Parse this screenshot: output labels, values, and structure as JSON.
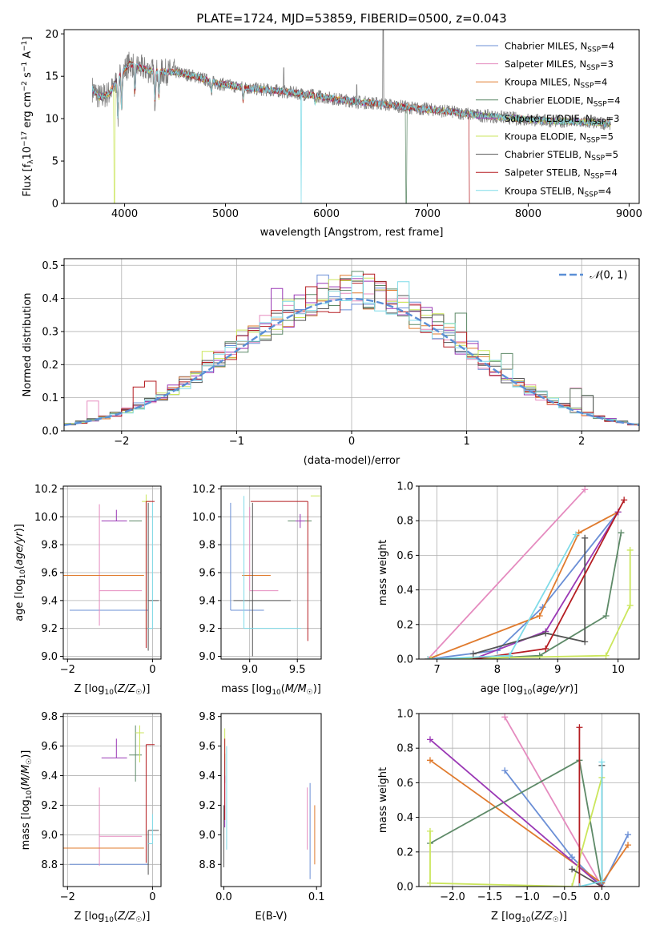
{
  "colors": {
    "Chabrier MILES": "#6b8fd6",
    "Salpeter MILES": "#e58bbf",
    "Kroupa MILES": "#e07b2e",
    "Chabrier ELODIE": "#5e8a68",
    "Salpeter ELODIE": "#9a38b5",
    "Kroupa ELODIE": "#cbe65c",
    "Chabrier STELIB": "#555555",
    "Salpeter STELIB": "#b51d22",
    "Kroupa STELIB": "#7fdbe8",
    "data": "#7f7f7f",
    "normal": "#5b8fd6"
  },
  "chart_data": [
    {
      "id": "spectrum",
      "type": "line",
      "title": "PLATE=1724, MJD=53859, FIBERID=0500, z=0.043",
      "xlabel": "wavelength [Angstrom, rest frame]",
      "ylabel": "Flux [f",
      "ylabel_html": [
        "Flux [f",
        "λ",
        "10",
        "−17",
        " erg cm",
        "−2",
        " s",
        "−1",
        " A",
        "−1",
        "]"
      ],
      "xlim": [
        3400,
        9100
      ],
      "ylim": [
        0,
        20.5
      ],
      "xticks": [
        4000,
        5000,
        6000,
        7000,
        8000,
        9000
      ],
      "yticks": [
        0,
        5,
        10,
        15,
        20
      ],
      "legend": [
        {
          "model": "Chabrier MILES",
          "nssp": "4"
        },
        {
          "model": "Salpeter MILES",
          "nssp": "3"
        },
        {
          "model": "Kroupa MILES",
          "nssp": "4"
        },
        {
          "model": "Chabrier ELODIE",
          "nssp": "4"
        },
        {
          "model": "Salpeter ELODIE",
          "nssp": "3"
        },
        {
          "model": "Kroupa ELODIE",
          "nssp": "5"
        },
        {
          "model": "Chabrier STELIB",
          "nssp": "5"
        },
        {
          "model": "Salpeter STELIB",
          "nssp": "4"
        },
        {
          "model": "Kroupa STELIB",
          "nssp": "4"
        }
      ],
      "legend_placement": "top-right",
      "continuum": [
        [
          3680,
          13.5
        ],
        [
          3750,
          12.5
        ],
        [
          3850,
          13.0
        ],
        [
          3950,
          15.0
        ],
        [
          4050,
          16.5
        ],
        [
          4150,
          16.0
        ],
        [
          4300,
          15.5
        ],
        [
          4500,
          15.5
        ],
        [
          4700,
          15.0
        ],
        [
          4900,
          14.2
        ],
        [
          5100,
          13.8
        ],
        [
          5300,
          13.5
        ],
        [
          5500,
          13.3
        ],
        [
          5700,
          13.0
        ],
        [
          5900,
          12.7
        ],
        [
          6100,
          12.3
        ],
        [
          6300,
          12.0
        ],
        [
          6500,
          11.8
        ],
        [
          6700,
          11.5
        ],
        [
          6900,
          11.2
        ],
        [
          7100,
          11.0
        ],
        [
          7300,
          10.7
        ],
        [
          7500,
          10.4
        ],
        [
          7700,
          10.2
        ],
        [
          7900,
          10.0
        ],
        [
          8100,
          9.8
        ],
        [
          8300,
          9.7
        ],
        [
          8500,
          9.6
        ],
        [
          8700,
          9.5
        ],
        [
          8820,
          9.4
        ]
      ],
      "absorption": [
        [
          3934,
          9.5
        ],
        [
          3969,
          11.0
        ],
        [
          4102,
          12.5
        ],
        [
          4300,
          11.8
        ],
        [
          4340,
          12.5
        ],
        [
          4861,
          13.0
        ],
        [
          5175,
          12.0
        ],
        [
          5890,
          11.8
        ]
      ],
      "emission": [
        [
          6563,
          20.5
        ],
        [
          5577,
          16.0
        ],
        [
          6300,
          14.0
        ]
      ],
      "dropouts": [
        {
          "model": "Kroupa ELODIE",
          "x": 3900
        },
        {
          "model": "Kroupa STELIB",
          "x": 5750
        },
        {
          "model": "Chabrier ELODIE",
          "x": 6790
        },
        {
          "model": "Salpeter STELIB",
          "x": 7420
        }
      ],
      "grid": false
    },
    {
      "id": "residuals",
      "type": "histogram",
      "xlabel": "(data-model)/error",
      "ylabel": "Normed distribution",
      "xlim": [
        -2.5,
        2.5
      ],
      "ylim": [
        0,
        0.52
      ],
      "xticks": [
        -2,
        -1,
        0,
        1,
        2
      ],
      "yticks": [
        0.0,
        0.1,
        0.2,
        0.3,
        0.4,
        0.5
      ],
      "legend": [
        "N(0,1)"
      ],
      "legend_placement": "top-right",
      "bin_width": 0.1,
      "grid": true
    },
    {
      "id": "age-vs-Z",
      "type": "errorbar",
      "xlabel": "Z [log10(Z/Z☉)]",
      "ylabel": "age [log10(age/yr)]",
      "xlim": [
        -2.1,
        0.2
      ],
      "ylim": [
        8.98,
        10.22
      ],
      "xticks": [
        -2,
        0
      ],
      "yticks": [
        9.0,
        9.2,
        9.4,
        9.6,
        9.8,
        10.0,
        10.2
      ],
      "points": [
        {
          "model": "Chabrier MILES",
          "x": -0.1,
          "xerr": [
            1.85,
            0.0
          ],
          "y": 9.33,
          "yerr": [
            0.0,
            0.0
          ]
        },
        {
          "model": "Salpeter MILES",
          "x": -1.25,
          "xerr": [
            0.0,
            1.0
          ],
          "y": 9.47,
          "yerr": [
            0.25,
            0.62
          ]
        },
        {
          "model": "Kroupa MILES",
          "x": -0.2,
          "xerr": [
            1.9,
            0.0
          ],
          "y": 9.58,
          "yerr": [
            0.0,
            0.0
          ]
        },
        {
          "model": "Chabrier ELODIE",
          "x": -0.4,
          "xerr": [
            0.15,
            0.15
          ],
          "y": 9.97,
          "yerr": [
            0.0,
            0.0
          ]
        },
        {
          "model": "Salpeter ELODIE",
          "x": -0.85,
          "xerr": [
            0.35,
            0.25
          ],
          "y": 9.97,
          "yerr": [
            0.0,
            0.08
          ]
        },
        {
          "model": "Kroupa ELODIE",
          "x": -0.15,
          "xerr": [
            0.1,
            0.1
          ],
          "y": 10.11,
          "yerr": [
            0.92,
            0.05
          ]
        },
        {
          "model": "Chabrier STELIB",
          "x": -0.1,
          "xerr": [
            0.0,
            0.25
          ],
          "y": 9.4,
          "yerr": [
            0.36,
            0.7
          ]
        },
        {
          "model": "Salpeter STELIB",
          "x": -0.15,
          "xerr": [
            0.0,
            0.2
          ],
          "y": 10.11,
          "yerr": [
            1.05,
            0.0
          ]
        },
        {
          "model": "Kroupa STELIB",
          "x": 0.0,
          "xerr": [
            0.1,
            0.0
          ],
          "y": 9.2,
          "yerr": [
            0.0,
            0.9
          ]
        }
      ],
      "grid": true
    },
    {
      "id": "age-vs-mass",
      "type": "errorbar",
      "xlabel": "mass [log10(M/M☉)]",
      "ylabel": "",
      "xlim": [
        8.7,
        9.75
      ],
      "ylim": [
        8.98,
        10.22
      ],
      "xticks": [
        9.0,
        9.5
      ],
      "yticks": [
        9.0,
        9.2,
        9.4,
        9.6,
        9.8,
        10.0,
        10.2
      ],
      "points": [
        {
          "model": "Chabrier MILES",
          "x": 8.8,
          "xerr": [
            0.0,
            0.35
          ],
          "y": 9.33,
          "yerr": [
            0.0,
            0.77
          ]
        },
        {
          "model": "Salpeter MILES",
          "x": 9.0,
          "xerr": [
            0.0,
            0.3
          ],
          "y": 9.47,
          "yerr": [
            0.0,
            0.6
          ]
        },
        {
          "model": "Kroupa MILES",
          "x": 8.92,
          "xerr": [
            0.0,
            0.3
          ],
          "y": 9.58,
          "yerr": [
            0.0,
            0.0
          ]
        },
        {
          "model": "Chabrier ELODIE",
          "x": 9.55,
          "xerr": [
            0.15,
            0.1
          ],
          "y": 9.97,
          "yerr": [
            0.0,
            0.0
          ]
        },
        {
          "model": "Salpeter ELODIE",
          "x": 9.53,
          "xerr": [
            0.05,
            0.05
          ],
          "y": 9.97,
          "yerr": [
            0.05,
            0.05
          ]
        },
        {
          "model": "Kroupa ELODIE",
          "x": 9.69,
          "xerr": [
            0.05,
            0.05
          ],
          "y": 10.15,
          "yerr": [
            0.0,
            0.0
          ]
        },
        {
          "model": "Chabrier STELIB",
          "x": 9.03,
          "xerr": [
            0.2,
            0.4
          ],
          "y": 9.4,
          "yerr": [
            0.4,
            0.7
          ]
        },
        {
          "model": "Salpeter STELIB",
          "x": 9.61,
          "xerr": [
            0.6,
            0.0
          ],
          "y": 10.11,
          "yerr": [
            1.0,
            0.0
          ]
        },
        {
          "model": "Kroupa STELIB",
          "x": 8.94,
          "xerr": [
            0.0,
            0.6
          ],
          "y": 9.2,
          "yerr": [
            0.0,
            0.95
          ]
        }
      ],
      "grid": true
    },
    {
      "id": "weight-vs-age",
      "type": "line",
      "xlabel": "age [log10(age/yr)]",
      "ylabel": "mass weight",
      "xlim": [
        6.7,
        10.35
      ],
      "ylim": [
        0,
        1.0
      ],
      "xticks": [
        7,
        8,
        9,
        10
      ],
      "yticks": [
        0.0,
        0.2,
        0.4,
        0.6,
        0.8,
        1.0
      ],
      "series": [
        {
          "model": "Chabrier MILES",
          "x": [
            6.85,
            8.0,
            8.75,
            10.0
          ],
          "y": [
            0.0,
            0.05,
            0.3,
            0.85
          ]
        },
        {
          "model": "Salpeter MILES",
          "x": [
            6.85,
            9.45
          ],
          "y": [
            0.0,
            0.98
          ]
        },
        {
          "model": "Kroupa MILES",
          "x": [
            6.85,
            8.7,
            9.35,
            10.0
          ],
          "y": [
            0.0,
            0.25,
            0.73,
            0.85
          ]
        },
        {
          "model": "Chabrier ELODIE",
          "x": [
            7.6,
            8.7,
            9.8,
            10.05
          ],
          "y": [
            0.0,
            0.02,
            0.25,
            0.73
          ]
        },
        {
          "model": "Salpeter ELODIE",
          "x": [
            7.6,
            8.8,
            10.0
          ],
          "y": [
            0.0,
            0.16,
            0.85
          ]
        },
        {
          "model": "Kroupa ELODIE",
          "x": [
            6.9,
            9.8,
            10.2,
            10.2
          ],
          "y": [
            0.0,
            0.02,
            0.31,
            0.63
          ]
        },
        {
          "model": "Chabrier STELIB",
          "x": [
            7.6,
            8.8,
            9.45,
            9.45
          ],
          "y": [
            0.03,
            0.15,
            0.1,
            0.7
          ]
        },
        {
          "model": "Salpeter STELIB",
          "x": [
            7.6,
            8.8,
            10.1
          ],
          "y": [
            0.0,
            0.06,
            0.92
          ]
        },
        {
          "model": "Kroupa STELIB",
          "x": [
            6.85,
            8.2,
            9.3
          ],
          "y": [
            0.0,
            0.02,
            0.72
          ]
        }
      ],
      "grid": true
    },
    {
      "id": "mass-vs-Z",
      "type": "errorbar",
      "xlabel": "Z [log10(Z/Z☉)]",
      "ylabel": "mass [log10(M/M☉)]",
      "xlim": [
        -2.1,
        0.2
      ],
      "ylim": [
        8.65,
        9.82
      ],
      "xticks": [
        -2,
        0
      ],
      "yticks": [
        8.8,
        9.0,
        9.2,
        9.4,
        9.6,
        9.8
      ],
      "points": [
        {
          "model": "Chabrier MILES",
          "x": -0.1,
          "xerr": [
            1.85,
            0.0
          ],
          "y": 8.8,
          "yerr": [
            0.0,
            0.0
          ]
        },
        {
          "model": "Salpeter MILES",
          "x": -1.25,
          "xerr": [
            0.0,
            1.0
          ],
          "y": 8.99,
          "yerr": [
            0.2,
            0.33
          ]
        },
        {
          "model": "Kroupa MILES",
          "x": -0.2,
          "xerr": [
            1.9,
            0.0
          ],
          "y": 8.91,
          "yerr": [
            0.0,
            0.0
          ]
        },
        {
          "model": "Chabrier ELODIE",
          "x": -0.4,
          "xerr": [
            0.15,
            0.15
          ],
          "y": 9.54,
          "yerr": [
            0.18,
            0.2
          ]
        },
        {
          "model": "Salpeter ELODIE",
          "x": -0.85,
          "xerr": [
            0.35,
            0.25
          ],
          "y": 9.52,
          "yerr": [
            0.0,
            0.13
          ]
        },
        {
          "model": "Kroupa ELODIE",
          "x": -0.3,
          "xerr": [
            0.1,
            0.1
          ],
          "y": 9.69,
          "yerr": [
            0.2,
            0.05
          ]
        },
        {
          "model": "Chabrier STELIB",
          "x": -0.1,
          "xerr": [
            0.0,
            0.25
          ],
          "y": 9.03,
          "yerr": [
            0.3,
            0.0
          ]
        },
        {
          "model": "Salpeter STELIB",
          "x": -0.15,
          "xerr": [
            0.0,
            0.2
          ],
          "y": 9.61,
          "yerr": [
            0.8,
            0.0
          ]
        },
        {
          "model": "Kroupa STELIB",
          "x": 0.0,
          "xerr": [
            0.1,
            0.0
          ],
          "y": 8.94,
          "yerr": [
            0.0,
            0.2
          ]
        }
      ],
      "grid": true
    },
    {
      "id": "mass-vs-EBV",
      "type": "errorbar",
      "xlabel": "E(B-V)",
      "ylabel": "",
      "xlim": [
        -0.003,
        0.105
      ],
      "ylim": [
        8.65,
        9.82
      ],
      "xticks": [
        0.0,
        0.1
      ],
      "yticks": [
        8.8,
        9.0,
        9.2,
        9.4,
        9.6,
        9.8
      ],
      "points": [
        {
          "model": "Chabrier MILES",
          "x": 0.093,
          "y": 9.0,
          "yerr": [
            0.3,
            0.35
          ]
        },
        {
          "model": "Salpeter MILES",
          "x": 0.09,
          "y": 9.1,
          "yerr": [
            0.2,
            0.22
          ]
        },
        {
          "model": "Kroupa MILES",
          "x": 0.098,
          "y": 9.0,
          "yerr": [
            0.2,
            0.2
          ]
        },
        {
          "model": "Chabrier ELODIE",
          "x": 0.001,
          "y": 9.45,
          "yerr": [
            0.1,
            0.1
          ]
        },
        {
          "model": "Salpeter ELODIE",
          "x": 0.001,
          "y": 9.2,
          "yerr": [
            0.15,
            0.2
          ]
        },
        {
          "model": "Kroupa ELODIE",
          "x": 0.001,
          "y": 9.6,
          "yerr": [
            0.1,
            0.12
          ]
        },
        {
          "model": "Chabrier STELIB",
          "x": 0.0,
          "y": 9.0,
          "yerr": [
            0.22,
            0.2
          ]
        },
        {
          "model": "Salpeter STELIB",
          "x": 0.001,
          "y": 9.4,
          "yerr": [
            0.3,
            0.25
          ]
        },
        {
          "model": "Kroupa STELIB",
          "x": 0.003,
          "y": 9.2,
          "yerr": [
            0.3,
            0.4
          ]
        }
      ],
      "grid": false
    },
    {
      "id": "weight-vs-Z",
      "type": "line",
      "xlabel": "Z [log10(Z/Z☉)]",
      "ylabel": "mass weight",
      "xlim": [
        -2.45,
        0.5
      ],
      "ylim": [
        0,
        1.0
      ],
      "xticks": [
        -2.0,
        -1.5,
        -1.0,
        -0.5,
        0.0
      ],
      "yticks": [
        0.0,
        0.2,
        0.4,
        0.6,
        0.8,
        1.0
      ],
      "series": [
        {
          "model": "Chabrier MILES",
          "x": [
            -1.3,
            -0.4,
            0.0,
            0.35
          ],
          "y": [
            0.67,
            0.17,
            0.0,
            0.3
          ]
        },
        {
          "model": "Salpeter MILES",
          "x": [
            -1.3,
            0.0
          ],
          "y": [
            0.98,
            0.0
          ]
        },
        {
          "model": "Kroupa MILES",
          "x": [
            -2.3,
            0.0,
            0.35
          ],
          "y": [
            0.73,
            0.02,
            0.24
          ]
        },
        {
          "model": "Chabrier ELODIE",
          "x": [
            -2.3,
            -0.3,
            0.0
          ],
          "y": [
            0.25,
            0.73,
            0.0
          ]
        },
        {
          "model": "Salpeter ELODIE",
          "x": [
            -2.3,
            0.0
          ],
          "y": [
            0.85,
            0.0
          ]
        },
        {
          "model": "Kroupa ELODIE",
          "x": [
            -2.3,
            -2.3,
            -0.4,
            0.0
          ],
          "y": [
            0.32,
            0.02,
            0.0,
            0.63
          ]
        },
        {
          "model": "Chabrier STELIB",
          "x": [
            -0.4,
            0.0,
            0.0
          ],
          "y": [
            0.1,
            0.0,
            0.7
          ]
        },
        {
          "model": "Salpeter STELIB",
          "x": [
            -0.3,
            -0.3,
            0.0
          ],
          "y": [
            0.92,
            0.0,
            0.0
          ]
        },
        {
          "model": "Kroupa STELIB",
          "x": [
            -0.3,
            0.0,
            0.0
          ],
          "y": [
            0.0,
            0.03,
            0.72
          ]
        }
      ],
      "grid": true
    }
  ]
}
